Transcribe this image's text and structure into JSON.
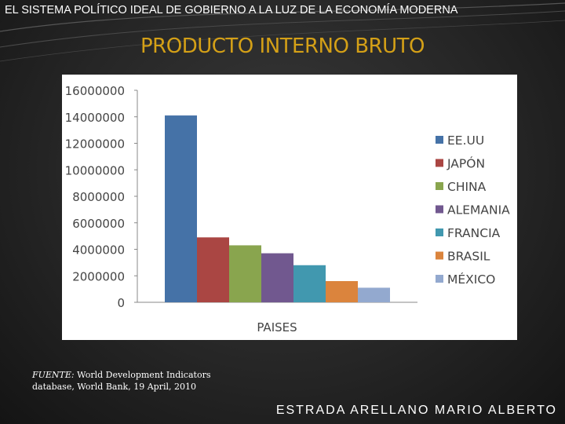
{
  "header": {
    "title": "EL SISTEMA POLÍTICO IDEAL DE GOBIERNO A LA LUZ DE LA ECONOMÍA MODERNA"
  },
  "slide": {
    "title": "PRODUCTO INTERNO BRUTO"
  },
  "source": {
    "label": "FUENTE:",
    "line1": "World Development Indicators",
    "line2": "database, World Bank, 19 April, 2010"
  },
  "author": {
    "name": "ESTRADA ARELLANO MARIO ALBERTO"
  },
  "chart_data": {
    "type": "bar",
    "title": "",
    "xlabel": "PAISES",
    "ylabel": "",
    "ylim": [
      0,
      16000000
    ],
    "yticks": [
      0,
      2000000,
      4000000,
      6000000,
      8000000,
      10000000,
      12000000,
      14000000,
      16000000
    ],
    "ytick_labels": [
      "0",
      "2000000",
      "4000000",
      "6000000",
      "8000000",
      "10000000",
      "12000000",
      "14000000",
      "16000000"
    ],
    "grid": false,
    "legend_position": "right",
    "series": [
      {
        "name": "EE.UU",
        "value": 14100000,
        "color": "#4572a7"
      },
      {
        "name": "JAPÓN",
        "value": 4900000,
        "color": "#aa4643"
      },
      {
        "name": "CHINA",
        "value": 4300000,
        "color": "#89a54e"
      },
      {
        "name": "ALEMANIA",
        "value": 3700000,
        "color": "#71588f"
      },
      {
        "name": "FRANCIA",
        "value": 2800000,
        "color": "#4198af"
      },
      {
        "name": "BRASIL",
        "value": 1600000,
        "color": "#db843d"
      },
      {
        "name": "MÉXICO",
        "value": 1100000,
        "color": "#93a9cf"
      }
    ]
  }
}
